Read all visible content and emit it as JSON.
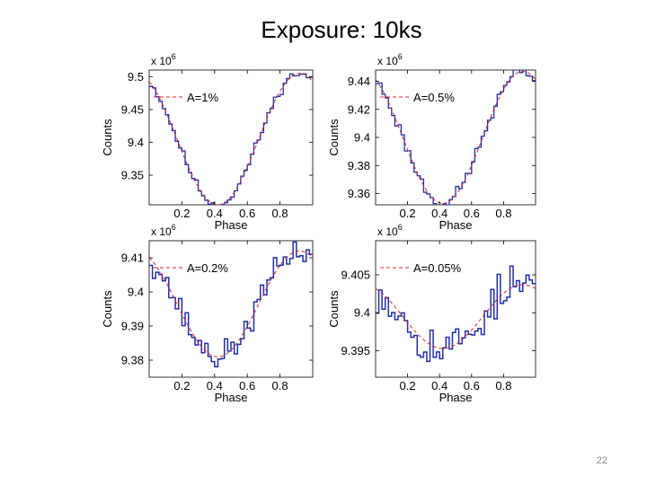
{
  "slide": {
    "title": "Exposure: 10ks",
    "page_number": "22"
  },
  "colors": {
    "data_line": "#1f2fa8",
    "model_line": "#e0202a",
    "axis": "#000000"
  },
  "chart_data": [
    {
      "type": "line",
      "panel": "top-left",
      "legend_label": "A=1%",
      "legend_position": "top-left",
      "scale_label": "x 10",
      "scale_exp": "6",
      "xlabel": "Phase",
      "ylabel": "Counts",
      "xlim": [
        0,
        1
      ],
      "ylim": [
        9.305,
        9.51
      ],
      "x_ticks": [
        0.2,
        0.4,
        0.6,
        0.8
      ],
      "x_tick_labels": [
        "0.2",
        "0.4",
        "0.6",
        "0.8"
      ],
      "y_ticks": [
        9.35,
        9.4,
        9.45,
        9.5
      ],
      "y_tick_labels": [
        "9.35",
        "9.4",
        "9.45",
        "9.5"
      ],
      "model": {
        "name": "A=1%",
        "center": 9.405,
        "amplitude": 0.1,
        "phase_of_minimum": 0.42
      },
      "noise": 0.006,
      "bins": 50,
      "seed": 11
    },
    {
      "type": "line",
      "panel": "top-right",
      "legend_label": "A=0.5%",
      "legend_position": "top-left",
      "scale_label": "x 10",
      "scale_exp": "6",
      "xlabel": "Phase",
      "ylabel": "Counts",
      "xlim": [
        0,
        1
      ],
      "ylim": [
        9.352,
        9.448
      ],
      "x_ticks": [
        0.2,
        0.4,
        0.6,
        0.8
      ],
      "x_tick_labels": [
        "0.2",
        "0.4",
        "0.6",
        "0.8"
      ],
      "y_ticks": [
        9.36,
        9.38,
        9.4,
        9.42,
        9.44
      ],
      "y_tick_labels": [
        "9.36",
        "9.38",
        "9.4",
        "9.42",
        "9.44"
      ],
      "model": {
        "name": "A=0.5%",
        "center": 9.4,
        "amplitude": 0.047,
        "phase_of_minimum": 0.42
      },
      "noise": 0.004,
      "bins": 50,
      "seed": 23
    },
    {
      "type": "line",
      "panel": "bottom-left",
      "legend_label": "A=0.2%",
      "legend_position": "top-left",
      "scale_label": "x 10",
      "scale_exp": "6",
      "xlabel": "Phase",
      "ylabel": "Counts",
      "xlim": [
        0,
        1
      ],
      "ylim": [
        9.375,
        9.415
      ],
      "x_ticks": [
        0.2,
        0.4,
        0.6,
        0.8
      ],
      "x_tick_labels": [
        "0.2",
        "0.4",
        "0.6",
        "0.8"
      ],
      "y_ticks": [
        9.38,
        9.39,
        9.4,
        9.41
      ],
      "y_tick_labels": [
        "9.38",
        "9.39",
        "9.4",
        "9.41"
      ],
      "model": {
        "name": "A=0.2%",
        "center": 9.3965,
        "amplitude": 0.0155,
        "phase_of_minimum": 0.42
      },
      "noise": 0.0035,
      "bins": 50,
      "seed": 37
    },
    {
      "type": "line",
      "panel": "bottom-right",
      "legend_label": "A=0.05%",
      "legend_position": "top-left",
      "scale_label": "x 10",
      "scale_exp": "6",
      "xlabel": "Phase",
      "ylabel": "Counts",
      "xlim": [
        0,
        1
      ],
      "ylim": [
        9.3915,
        9.4095
      ],
      "x_ticks": [
        0.2,
        0.4,
        0.6,
        0.8
      ],
      "x_tick_labels": [
        "0.2",
        "0.4",
        "0.6",
        "0.8"
      ],
      "y_ticks": [
        9.395,
        9.4,
        9.405
      ],
      "y_tick_labels": [
        "9.395",
        "9.4",
        "9.405"
      ],
      "model": {
        "name": "A=0.05%",
        "center": 9.3995,
        "amplitude": 0.0042,
        "phase_of_minimum": 0.42
      },
      "noise": 0.0026,
      "bins": 50,
      "seed": 53
    }
  ]
}
